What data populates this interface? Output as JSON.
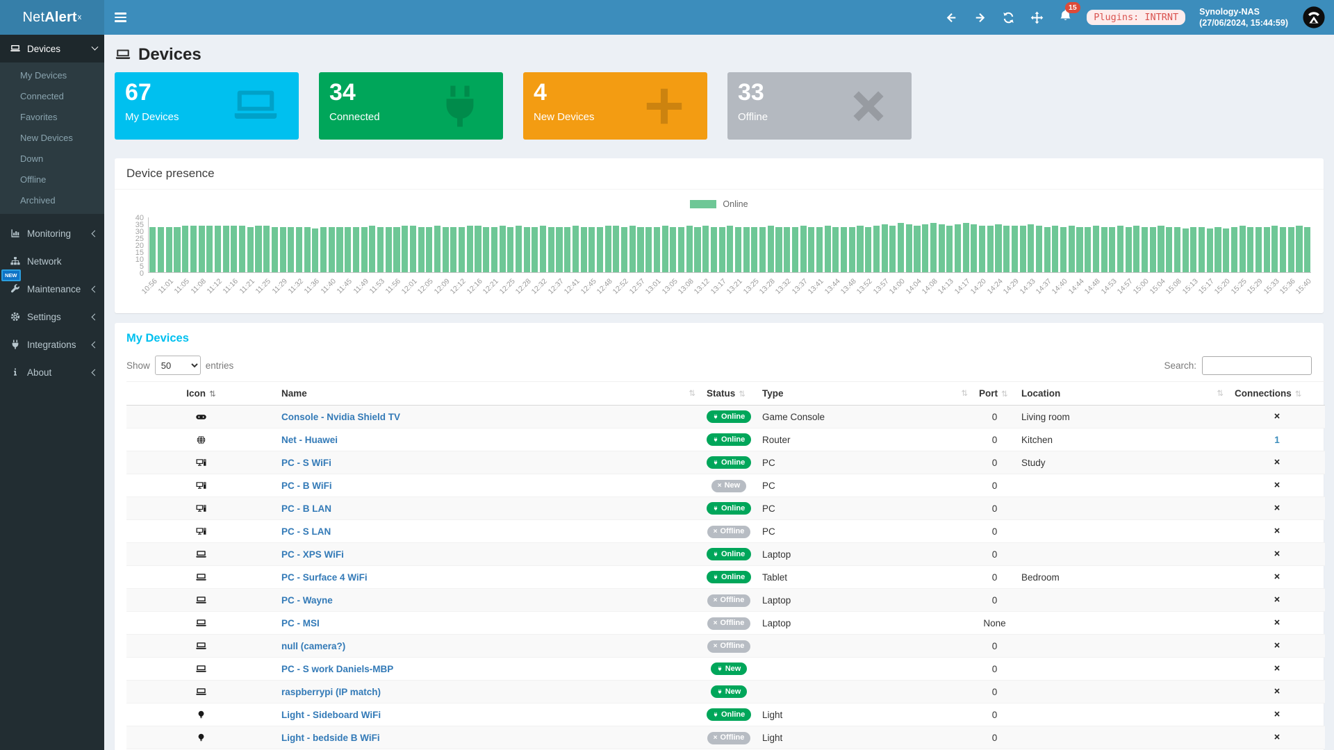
{
  "header": {
    "brand": {
      "prefix": "Net",
      "bold": "Alert",
      "sup": "x"
    },
    "notification_count": "15",
    "plugins_badge": "Plugins: INTRNT",
    "device_name": "Synology-NAS",
    "timestamp": "(27/06/2024, 15:44:59)"
  },
  "sidebar": {
    "devices": {
      "label": "Devices",
      "children": [
        "My Devices",
        "Connected",
        "Favorites",
        "New Devices",
        "Down",
        "Offline",
        "Archived"
      ]
    },
    "items": [
      {
        "label": "Monitoring"
      },
      {
        "label": "Network"
      },
      {
        "label": "Maintenance",
        "badge": "NEW"
      },
      {
        "label": "Settings"
      },
      {
        "label": "Integrations"
      },
      {
        "label": "About"
      }
    ]
  },
  "page": {
    "title": "Devices"
  },
  "cards": [
    {
      "value": "67",
      "label": "My Devices",
      "color": "#00c0ef"
    },
    {
      "value": "34",
      "label": "Connected",
      "color": "#00a65a"
    },
    {
      "value": "4",
      "label": "New Devices",
      "color": "#f39c12"
    },
    {
      "value": "33",
      "label": "Offline",
      "color": "#b4b9c0"
    }
  ],
  "chart_data": {
    "type": "bar",
    "title": "Device presence",
    "legend": [
      {
        "label": "Online",
        "color": "#6ec796"
      }
    ],
    "legend_position": "top-center",
    "grid": false,
    "ylim": [
      0,
      40
    ],
    "yticks": [
      40,
      35,
      30,
      25,
      20,
      15,
      10,
      5,
      0
    ],
    "x_labels": [
      "10:56",
      "11:01",
      "11:05",
      "11:08",
      "11:12",
      "11:16",
      "11:21",
      "11:25",
      "11:29",
      "11:32",
      "11:36",
      "11:40",
      "11:45",
      "11:49",
      "11:53",
      "11:56",
      "12:01",
      "12:05",
      "12:09",
      "12:12",
      "12:16",
      "12:21",
      "12:25",
      "12:28",
      "12:32",
      "12:37",
      "12:41",
      "12:45",
      "12:48",
      "12:52",
      "12:57",
      "13:01",
      "13:05",
      "13:08",
      "13:12",
      "13:17",
      "13:21",
      "13:25",
      "13:28",
      "13:32",
      "13:37",
      "13:41",
      "13:44",
      "13:48",
      "13:52",
      "13:57",
      "14:00",
      "14:04",
      "14:08",
      "14:13",
      "14:17",
      "14:20",
      "14:24",
      "14:29",
      "14:33",
      "14:37",
      "14:40",
      "14:44",
      "14:48",
      "14:53",
      "14:57",
      "15:00",
      "15:04",
      "15:08",
      "15:13",
      "15:17",
      "15:20",
      "15:25",
      "15:29",
      "15:33",
      "15:36",
      "15:40"
    ],
    "values": [
      33,
      33,
      33,
      33,
      34,
      34,
      34,
      34,
      34,
      34,
      34,
      34,
      33,
      34,
      34,
      33,
      33,
      33,
      33,
      33,
      32,
      33,
      33,
      33,
      33,
      33,
      33,
      34,
      33,
      33,
      33,
      34,
      34,
      33,
      33,
      34,
      33,
      33,
      33,
      34,
      34,
      33,
      33,
      34,
      33,
      34,
      33,
      33,
      34,
      33,
      33,
      33,
      34,
      33,
      33,
      33,
      34,
      34,
      33,
      34,
      33,
      33,
      33,
      34,
      33,
      33,
      34,
      33,
      34,
      33,
      33,
      34,
      33,
      33,
      33,
      33,
      34,
      33,
      33,
      33,
      34,
      33,
      33,
      34,
      33,
      33,
      33,
      34,
      33,
      34,
      35,
      34,
      36,
      35,
      34,
      35,
      36,
      35,
      34,
      35,
      36,
      35,
      34,
      34,
      35,
      34,
      34,
      34,
      35,
      34,
      33,
      34,
      33,
      34,
      33,
      33,
      34,
      33,
      33,
      34,
      33,
      34,
      33,
      33,
      34,
      33,
      33,
      32,
      33,
      33,
      32,
      33,
      32,
      33,
      34,
      33,
      33,
      33,
      34,
      33,
      33,
      34,
      33
    ]
  },
  "table": {
    "title": "My Devices",
    "show_label": "Show",
    "page_size": "50",
    "entries_label": "entries",
    "search_label": "Search:",
    "search_value": "",
    "columns": [
      {
        "label": "Icon"
      },
      {
        "label": "Name"
      },
      {
        "label": "Status"
      },
      {
        "label": "Type"
      },
      {
        "label": "Port"
      },
      {
        "label": "Location"
      },
      {
        "label": "Connections"
      }
    ],
    "badge_colors": {
      "connected": "#00a65a",
      "disconnected": "#b7bcc3"
    },
    "rows": [
      {
        "icon": "gamepad",
        "name": "Console - Nvidia Shield TV",
        "status": "Online",
        "variant": "online",
        "type": "Game Console",
        "port": "0",
        "location": "Living room",
        "connections": "x",
        "connections_link": false
      },
      {
        "icon": "globe",
        "name": "Net - Huawei",
        "status": "Online",
        "variant": "online",
        "type": "Router",
        "port": "0",
        "location": "Kitchen",
        "connections": "1",
        "connections_link": true
      },
      {
        "icon": "desktop",
        "name": "PC - S WiFi",
        "status": "Online",
        "variant": "online",
        "type": "PC",
        "port": "0",
        "location": "Study",
        "connections": "x",
        "connections_link": false
      },
      {
        "icon": "desktop",
        "name": "PC - B WiFi",
        "status": "New",
        "variant": "new-gray",
        "type": "PC",
        "port": "0",
        "location": "",
        "connections": "x",
        "connections_link": false
      },
      {
        "icon": "desktop",
        "name": "PC - B LAN",
        "status": "Online",
        "variant": "online",
        "type": "PC",
        "port": "0",
        "location": "",
        "connections": "x",
        "connections_link": false
      },
      {
        "icon": "desktop",
        "name": "PC - S LAN",
        "status": "Offline",
        "variant": "offline",
        "type": "PC",
        "port": "0",
        "location": "",
        "connections": "x",
        "connections_link": false
      },
      {
        "icon": "laptop",
        "name": "PC - XPS WiFi",
        "status": "Online",
        "variant": "online",
        "type": "Laptop",
        "port": "0",
        "location": "",
        "connections": "x",
        "connections_link": false
      },
      {
        "icon": "laptop",
        "name": "PC - Surface 4 WiFi",
        "status": "Online",
        "variant": "online",
        "type": "Tablet",
        "port": "0",
        "location": "Bedroom",
        "connections": "x",
        "connections_link": false
      },
      {
        "icon": "laptop",
        "name": "PC - Wayne",
        "status": "Offline",
        "variant": "offline",
        "type": "Laptop",
        "port": "0",
        "location": "",
        "connections": "x",
        "connections_link": false
      },
      {
        "icon": "laptop",
        "name": "PC - MSI",
        "status": "Offline",
        "variant": "offline",
        "type": "Laptop",
        "port": "None",
        "location": "",
        "connections": "x",
        "connections_link": false
      },
      {
        "icon": "laptop",
        "name": "null (camera?)",
        "status": "Offline",
        "variant": "offline",
        "type": "",
        "port": "0",
        "location": "",
        "connections": "x",
        "connections_link": false
      },
      {
        "icon": "laptop",
        "name": "PC - S work Daniels-MBP",
        "status": "New",
        "variant": "new-green",
        "type": "",
        "port": "0",
        "location": "",
        "connections": "x",
        "connections_link": false
      },
      {
        "icon": "laptop",
        "name": "raspberrypi (IP match)",
        "status": "New",
        "variant": "new-green",
        "type": "",
        "port": "0",
        "location": "",
        "connections": "x",
        "connections_link": false
      },
      {
        "icon": "bulb",
        "name": "Light - Sideboard WiFi",
        "status": "Online",
        "variant": "online",
        "type": "Light",
        "port": "0",
        "location": "",
        "connections": "x",
        "connections_link": false
      },
      {
        "icon": "bulb",
        "name": "Light - bedside B WiFi",
        "status": "Offline",
        "variant": "offline",
        "type": "Light",
        "port": "0",
        "location": "",
        "connections": "x",
        "connections_link": false
      }
    ]
  }
}
